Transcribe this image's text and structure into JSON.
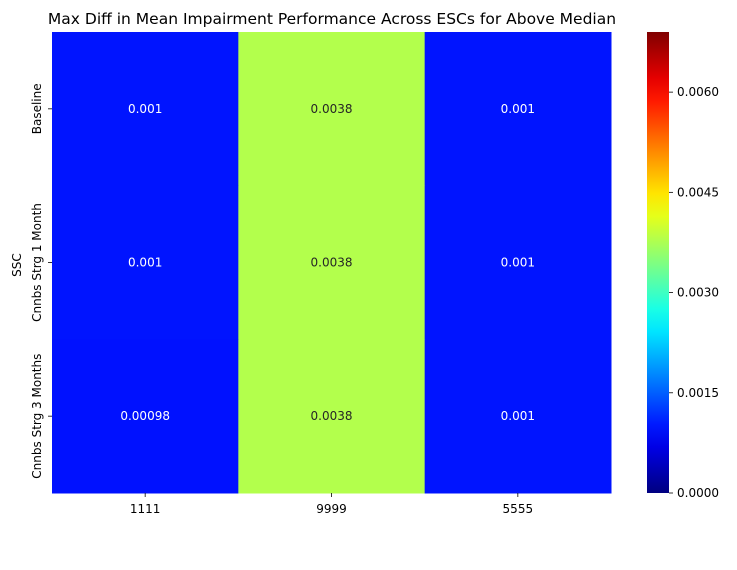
{
  "chart_data": {
    "type": "heatmap",
    "title": "Max Diff in Mean Impairment Performance Across ESCs for Above Median",
    "xlabel": "",
    "ylabel": "SSC",
    "columns": [
      "1111",
      "9999",
      "5555"
    ],
    "rows": [
      "Baseline",
      "Cnnbs Strg 1 Month",
      "Cnnbs Strg 3 Months"
    ],
    "values": [
      [
        0.001,
        0.0038,
        0.001
      ],
      [
        0.001,
        0.0038,
        0.001
      ],
      [
        0.00098,
        0.0038,
        0.001
      ]
    ],
    "annotations": [
      [
        "0.001",
        "0.0038",
        "0.001"
      ],
      [
        "0.001",
        "0.0038",
        "0.001"
      ],
      [
        "0.00098",
        "0.0038",
        "0.001"
      ]
    ],
    "colorbar": {
      "colormap": "jet",
      "vmin": 0,
      "vmax": 0.0069,
      "ticks": [
        0.0,
        0.0015,
        0.003,
        0.0045,
        0.006
      ],
      "tick_labels": [
        "0.0000",
        "0.0015",
        "0.0030",
        "0.0045",
        "0.0060"
      ]
    },
    "legend": "colorbar right"
  }
}
